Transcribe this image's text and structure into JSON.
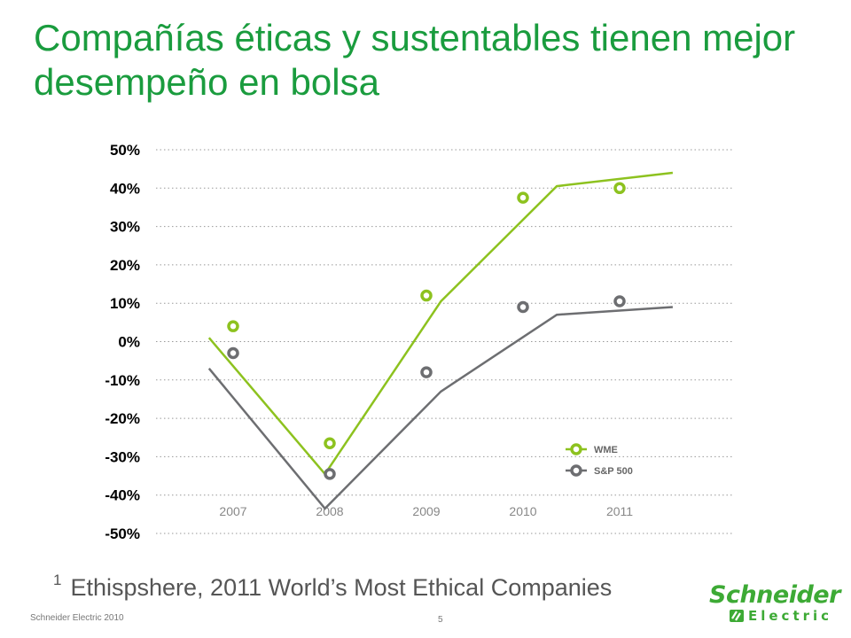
{
  "slide": {
    "title": "Compañías éticas y sustentables tienen mejor desempeño en bolsa",
    "footnote_marker": "1",
    "footnote_text": "Ethispshere, 2011 World’s Most Ethical Companies",
    "copyright": "Schneider Electric 2010",
    "page_number": "5",
    "logo": {
      "top_text": "Schneider",
      "bottom_text": "Electric",
      "icon": "schneider-logo-mark"
    }
  },
  "colors": {
    "title": "#1a9c3e",
    "wme": "#8dc21f",
    "sp500": "#6d6e71",
    "grid": "#999999"
  },
  "chart_data": {
    "type": "line",
    "title": "",
    "xlabel": "",
    "ylabel": "",
    "ylim": [
      -0.5,
      0.5
    ],
    "yticks": [
      0.5,
      0.4,
      0.3,
      0.2,
      0.1,
      0,
      -0.1,
      -0.2,
      -0.3,
      -0.4,
      -0.5
    ],
    "ytick_labels": [
      "50%",
      "40%",
      "30%",
      "20%",
      "10%",
      "0%",
      "-10%",
      "-20%",
      "-30%",
      "-40%",
      "-50%"
    ],
    "categories": [
      "2007",
      "2008",
      "2009",
      "2010",
      "2011"
    ],
    "grid": true,
    "legend_position": "bottom-right",
    "series": [
      {
        "name": "WME",
        "color": "#8dc21f",
        "points": [
          0.04,
          -0.265,
          0.12,
          0.375,
          0.4
        ],
        "line": [
          {
            "x": 2006.75,
            "y": 0.01
          },
          {
            "x": 2007.95,
            "y": -0.345
          },
          {
            "x": 2009.15,
            "y": 0.105
          },
          {
            "x": 2010.35,
            "y": 0.405
          },
          {
            "x": 2011.55,
            "y": 0.44
          }
        ]
      },
      {
        "name": "S&P 500",
        "color": "#6d6e71",
        "points": [
          -0.03,
          -0.345,
          -0.08,
          0.09,
          0.105
        ],
        "line": [
          {
            "x": 2006.75,
            "y": -0.07
          },
          {
            "x": 2007.95,
            "y": -0.435
          },
          {
            "x": 2009.15,
            "y": -0.13
          },
          {
            "x": 2010.35,
            "y": 0.07
          },
          {
            "x": 2011.55,
            "y": 0.09
          }
        ]
      }
    ]
  }
}
